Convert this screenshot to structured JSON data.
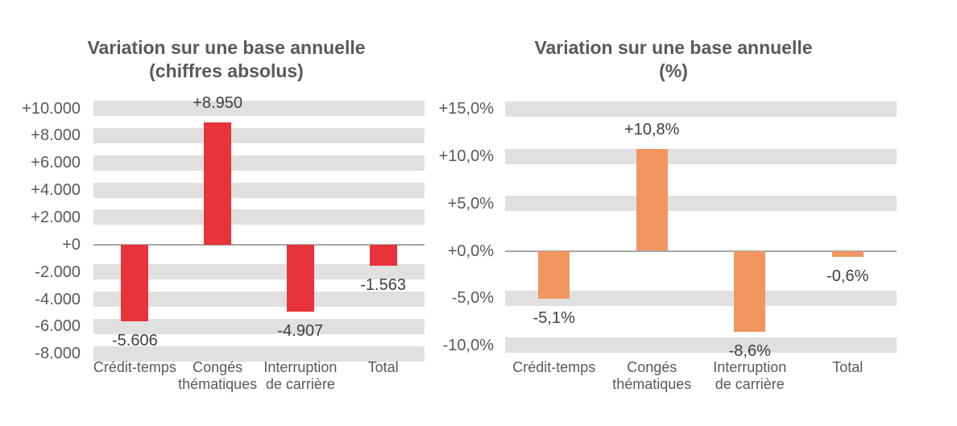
{
  "page": {
    "background": "#FFFFFF"
  },
  "chart_data": [
    {
      "type": "bar",
      "title": "Variation sur une base annuelle",
      "subtitle": "(chiffres absolus)",
      "categories": [
        "Crédit-temps",
        "Congés thématiques",
        "Interruption de carrière",
        "Total"
      ],
      "category_lines": [
        [
          "Crédit-temps"
        ],
        [
          "Congés",
          "thématiques"
        ],
        [
          "Interruption",
          "de carrière"
        ],
        [
          "Total"
        ]
      ],
      "values": [
        -5606,
        8950,
        -4907,
        -1563
      ],
      "data_labels": [
        "-5.606",
        "+8.950",
        "-4.907",
        "-1.563"
      ],
      "xlabel": "",
      "ylabel": "",
      "ylim": [
        -8000,
        10000
      ],
      "ytick_step": 2000,
      "yticks": [
        {
          "value": 10000,
          "label": "+10.000"
        },
        {
          "value": 8000,
          "label": "+8.000"
        },
        {
          "value": 6000,
          "label": "+6.000"
        },
        {
          "value": 4000,
          "label": "+4.000"
        },
        {
          "value": 2000,
          "label": "+2.000"
        },
        {
          "value": 0,
          "label": "+0"
        },
        {
          "value": -2000,
          "label": "-2.000"
        },
        {
          "value": -4000,
          "label": "-4.000"
        },
        {
          "value": -6000,
          "label": "-6.000"
        },
        {
          "value": -8000,
          "label": "-8.000"
        }
      ],
      "bar_color": "#E8333A",
      "gridline_color": "#E0E0E0",
      "axis_line_color": "#A6A6A6",
      "grid": "horizontal-stripes",
      "legend": "none"
    },
    {
      "type": "bar",
      "title": "Variation sur une base annuelle",
      "subtitle": "(%)",
      "categories": [
        "Crédit-temps",
        "Congés thématiques",
        "Interruption de carrière",
        "Total"
      ],
      "category_lines": [
        [
          "Crédit-temps"
        ],
        [
          "Congés",
          "thématiques"
        ],
        [
          "Interruption",
          "de carrière"
        ],
        [
          "Total"
        ]
      ],
      "values": [
        -5.1,
        10.8,
        -8.6,
        -0.6
      ],
      "data_labels": [
        "-5,1%",
        "+10,8%",
        "-8,6%",
        "-0,6%"
      ],
      "xlabel": "",
      "ylabel": "",
      "ylim": [
        -10,
        15
      ],
      "ytick_step": 5,
      "yticks": [
        {
          "value": 15,
          "label": "+15,0%"
        },
        {
          "value": 10,
          "label": "+10,0%"
        },
        {
          "value": 5,
          "label": "+5,0%"
        },
        {
          "value": 0,
          "label": "+0,0%"
        },
        {
          "value": -5,
          "label": "-5,0%"
        },
        {
          "value": -10,
          "label": "-10,0%"
        }
      ],
      "bar_color": "#F0965E",
      "gridline_color": "#E0E0E0",
      "axis_line_color": "#A6A6A6",
      "grid": "horizontal-stripes",
      "legend": "none"
    }
  ]
}
